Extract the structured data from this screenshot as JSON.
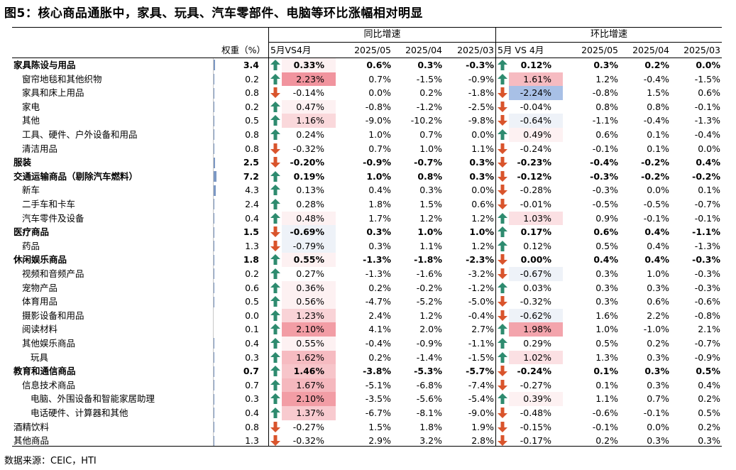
{
  "title": "图5：核心商品通胀中，家具、玩具、汽车零部件、电脑等环比涨幅相对明显",
  "source": "数据来源：CEIC，HTI",
  "colors": {
    "up": "#2e8b6f",
    "down": "#d9542c",
    "heat_pos": "#f0909a",
    "heat_neg": "#a8c0e6",
    "weight_bar": "#7c98c4"
  },
  "headers": {
    "group_yoy": "同比增速",
    "group_mom": "环比增速",
    "weight": "权重（%）",
    "yoy_diff": "5月VS4月",
    "yoy_may": "2025/05",
    "yoy_apr": "2025/04",
    "yoy_mar": "2025/03",
    "mom_diff": "5月 VS 4月",
    "mom_may": "2025/05",
    "mom_apr": "2025/04",
    "mom_mar": "2025/03"
  },
  "rows": [
    {
      "name": "家具陈设与用品",
      "indent": 0,
      "bold": true,
      "weight": "3.4",
      "yoy_diff": "0.33%",
      "yoy_diff_num": 0.33,
      "yoy_may": "0.6%",
      "yoy_apr": "0.3%",
      "yoy_mar": "-0.3%",
      "mom_diff": "0.12%",
      "mom_diff_num": 0.12,
      "mom_may": "0.3%",
      "mom_apr": "0.2%",
      "mom_mar": "0.0%"
    },
    {
      "name": "窗帘地毯和其他织物",
      "indent": 1,
      "bold": false,
      "weight": "0.2",
      "yoy_diff": "2.23%",
      "yoy_diff_num": 2.23,
      "yoy_may": "0.7%",
      "yoy_apr": "-1.5%",
      "yoy_mar": "-0.9%",
      "mom_diff": "1.61%",
      "mom_diff_num": 1.61,
      "mom_may": "1.2%",
      "mom_apr": "-0.4%",
      "mom_mar": "-1.5%"
    },
    {
      "name": "家具和床上用品",
      "indent": 1,
      "bold": false,
      "weight": "0.8",
      "yoy_diff": "-0.14%",
      "yoy_diff_num": -0.14,
      "yoy_may": "0.0%",
      "yoy_apr": "0.2%",
      "yoy_mar": "-1.8%",
      "mom_diff": "-2.24%",
      "mom_diff_num": -2.24,
      "mom_may": "-0.8%",
      "mom_apr": "1.5%",
      "mom_mar": "0.6%"
    },
    {
      "name": "家电",
      "indent": 1,
      "bold": false,
      "weight": "0.2",
      "yoy_diff": "0.47%",
      "yoy_diff_num": 0.47,
      "yoy_may": "-0.8%",
      "yoy_apr": "-1.2%",
      "yoy_mar": "-2.5%",
      "mom_diff": "-0.04%",
      "mom_diff_num": -0.04,
      "mom_may": "0.8%",
      "mom_apr": "0.8%",
      "mom_mar": "-0.1%"
    },
    {
      "name": "其他",
      "indent": 1,
      "bold": false,
      "weight": "0.5",
      "yoy_diff": "1.16%",
      "yoy_diff_num": 1.16,
      "yoy_may": "-9.0%",
      "yoy_apr": "-10.2%",
      "yoy_mar": "-9.8%",
      "mom_diff": "-0.64%",
      "mom_diff_num": -0.64,
      "mom_may": "-1.1%",
      "mom_apr": "-0.4%",
      "mom_mar": "-1.3%"
    },
    {
      "name": "工具、硬件、户外设备和用品",
      "indent": 1,
      "bold": false,
      "weight": "0.8",
      "yoy_diff": "0.24%",
      "yoy_diff_num": 0.24,
      "yoy_may": "1.0%",
      "yoy_apr": "0.7%",
      "yoy_mar": "0.0%",
      "mom_diff": "0.49%",
      "mom_diff_num": 0.49,
      "mom_may": "0.6%",
      "mom_apr": "0.1%",
      "mom_mar": "-0.4%"
    },
    {
      "name": "清洁用品",
      "indent": 1,
      "bold": false,
      "weight": "0.8",
      "yoy_diff": "-0.32%",
      "yoy_diff_num": -0.32,
      "yoy_may": "0.7%",
      "yoy_apr": "1.0%",
      "yoy_mar": "1.1%",
      "mom_diff": "-0.24%",
      "mom_diff_num": -0.24,
      "mom_may": "-0.1%",
      "mom_apr": "0.1%",
      "mom_mar": "0.0%"
    },
    {
      "name": "服装",
      "indent": 0,
      "bold": true,
      "weight": "2.5",
      "yoy_diff": "-0.20%",
      "yoy_diff_num": -0.2,
      "yoy_may": "-0.9%",
      "yoy_apr": "-0.7%",
      "yoy_mar": "0.3%",
      "mom_diff": "-0.23%",
      "mom_diff_num": -0.23,
      "mom_may": "-0.4%",
      "mom_apr": "-0.2%",
      "mom_mar": "0.4%"
    },
    {
      "name": "交通运输商品（剔除汽车燃料）",
      "indent": 0,
      "bold": true,
      "weight": "7.2",
      "yoy_diff": "0.19%",
      "yoy_diff_num": 0.19,
      "yoy_may": "1.0%",
      "yoy_apr": "0.8%",
      "yoy_mar": "0.3%",
      "mom_diff": "-0.12%",
      "mom_diff_num": -0.12,
      "mom_may": "-0.3%",
      "mom_apr": "-0.2%",
      "mom_mar": "-0.2%"
    },
    {
      "name": "新车",
      "indent": 1,
      "bold": false,
      "weight": "4.3",
      "yoy_diff": "0.13%",
      "yoy_diff_num": 0.13,
      "yoy_may": "0.4%",
      "yoy_apr": "0.3%",
      "yoy_mar": "0.0%",
      "mom_diff": "-0.28%",
      "mom_diff_num": -0.28,
      "mom_may": "-0.3%",
      "mom_apr": "0.0%",
      "mom_mar": "0.1%"
    },
    {
      "name": "二手车和卡车",
      "indent": 1,
      "bold": false,
      "weight": "2.4",
      "yoy_diff": "0.28%",
      "yoy_diff_num": 0.28,
      "yoy_may": "1.8%",
      "yoy_apr": "1.5%",
      "yoy_mar": "0.6%",
      "mom_diff": "-0.01%",
      "mom_diff_num": -0.01,
      "mom_may": "-0.5%",
      "mom_apr": "-0.5%",
      "mom_mar": "-0.7%"
    },
    {
      "name": "汽车零件及设备",
      "indent": 1,
      "bold": false,
      "weight": "0.4",
      "yoy_diff": "0.48%",
      "yoy_diff_num": 0.48,
      "yoy_may": "1.7%",
      "yoy_apr": "1.2%",
      "yoy_mar": "1.2%",
      "mom_diff": "1.03%",
      "mom_diff_num": 1.03,
      "mom_may": "0.9%",
      "mom_apr": "-0.1%",
      "mom_mar": "-0.1%"
    },
    {
      "name": "医疗商品",
      "indent": 0,
      "bold": true,
      "weight": "1.5",
      "yoy_diff": "-0.69%",
      "yoy_diff_num": -0.69,
      "yoy_may": "0.3%",
      "yoy_apr": "1.0%",
      "yoy_mar": "1.0%",
      "mom_diff": "0.17%",
      "mom_diff_num": 0.17,
      "mom_may": "0.6%",
      "mom_apr": "0.4%",
      "mom_mar": "-1.1%"
    },
    {
      "name": "药品",
      "indent": 1,
      "bold": false,
      "weight": "1.3",
      "yoy_diff": "-0.79%",
      "yoy_diff_num": -0.79,
      "yoy_may": "0.3%",
      "yoy_apr": "1.1%",
      "yoy_mar": "1.2%",
      "mom_diff": "0.12%",
      "mom_diff_num": 0.12,
      "mom_may": "0.5%",
      "mom_apr": "0.4%",
      "mom_mar": "-1.3%"
    },
    {
      "name": "休闲娱乐商品",
      "indent": 0,
      "bold": true,
      "weight": "1.8",
      "yoy_diff": "0.55%",
      "yoy_diff_num": 0.55,
      "yoy_may": "-1.3%",
      "yoy_apr": "-1.8%",
      "yoy_mar": "-2.3%",
      "mom_diff": "0.00%",
      "mom_diff_num": 0.0,
      "mom_dir": "down",
      "mom_may": "0.4%",
      "mom_apr": "0.4%",
      "mom_mar": "-0.3%"
    },
    {
      "name": "视频和音频产品",
      "indent": 1,
      "bold": false,
      "weight": "0.2",
      "yoy_diff": "0.27%",
      "yoy_diff_num": 0.27,
      "yoy_may": "-1.3%",
      "yoy_apr": "-1.6%",
      "yoy_mar": "-3.2%",
      "mom_diff": "-0.67%",
      "mom_diff_num": -0.67,
      "mom_may": "0.3%",
      "mom_apr": "1.0%",
      "mom_mar": "-0.3%"
    },
    {
      "name": "宠物产品",
      "indent": 1,
      "bold": false,
      "weight": "0.6",
      "yoy_diff": "0.36%",
      "yoy_diff_num": 0.36,
      "yoy_may": "0.2%",
      "yoy_apr": "-0.2%",
      "yoy_mar": "-1.2%",
      "mom_diff": "0.03%",
      "mom_diff_num": 0.03,
      "mom_may": "0.3%",
      "mom_apr": "0.3%",
      "mom_mar": "-0.3%"
    },
    {
      "name": "体育用品",
      "indent": 1,
      "bold": false,
      "weight": "0.5",
      "yoy_diff": "0.56%",
      "yoy_diff_num": 0.56,
      "yoy_may": "-4.7%",
      "yoy_apr": "-5.2%",
      "yoy_mar": "-5.0%",
      "mom_diff": "-0.32%",
      "mom_diff_num": -0.32,
      "mom_may": "0.3%",
      "mom_apr": "0.6%",
      "mom_mar": "-0.6%"
    },
    {
      "name": "摄影设备和用品",
      "indent": 1,
      "bold": false,
      "weight": "0.0",
      "yoy_diff": "1.23%",
      "yoy_diff_num": 1.23,
      "yoy_may": "2.4%",
      "yoy_apr": "1.2%",
      "yoy_mar": "-0.4%",
      "mom_diff": "-0.62%",
      "mom_diff_num": -0.62,
      "mom_may": "1.6%",
      "mom_apr": "2.2%",
      "mom_mar": "-0.8%"
    },
    {
      "name": "阅读材料",
      "indent": 1,
      "bold": false,
      "weight": "0.1",
      "yoy_diff": "2.10%",
      "yoy_diff_num": 2.1,
      "yoy_may": "4.1%",
      "yoy_apr": "2.0%",
      "yoy_mar": "2.7%",
      "mom_diff": "1.98%",
      "mom_diff_num": 1.98,
      "mom_may": "1.0%",
      "mom_apr": "-1.0%",
      "mom_mar": "2.1%"
    },
    {
      "name": "其他娱乐商品",
      "indent": 1,
      "bold": false,
      "weight": "0.4",
      "yoy_diff": "0.55%",
      "yoy_diff_num": 0.55,
      "yoy_may": "-0.4%",
      "yoy_apr": "-0.9%",
      "yoy_mar": "-1.1%",
      "mom_diff": "0.29%",
      "mom_diff_num": 0.29,
      "mom_may": "0.5%",
      "mom_apr": "0.2%",
      "mom_mar": "-0.7%"
    },
    {
      "name": "玩具",
      "indent": 2,
      "bold": false,
      "weight": "0.3",
      "yoy_diff": "1.62%",
      "yoy_diff_num": 1.62,
      "yoy_may": "0.2%",
      "yoy_apr": "-1.4%",
      "yoy_mar": "-1.5%",
      "mom_diff": "1.02%",
      "mom_diff_num": 1.02,
      "mom_may": "1.3%",
      "mom_apr": "0.3%",
      "mom_mar": "-0.9%"
    },
    {
      "name": "教育和通信商品",
      "indent": 0,
      "bold": true,
      "weight": "0.7",
      "yoy_diff": "1.46%",
      "yoy_diff_num": 1.46,
      "yoy_may": "-3.8%",
      "yoy_apr": "-5.3%",
      "yoy_mar": "-5.7%",
      "mom_diff": "-0.24%",
      "mom_diff_num": -0.24,
      "mom_may": "0.1%",
      "mom_apr": "0.3%",
      "mom_mar": "0.5%"
    },
    {
      "name": "信息技术商品",
      "indent": 1,
      "bold": false,
      "weight": "0.7",
      "yoy_diff": "1.67%",
      "yoy_diff_num": 1.67,
      "yoy_may": "-5.1%",
      "yoy_apr": "-6.8%",
      "yoy_mar": "-7.4%",
      "mom_diff": "-0.27%",
      "mom_diff_num": -0.27,
      "mom_may": "0.1%",
      "mom_apr": "0.3%",
      "mom_mar": "0.4%"
    },
    {
      "name": "电脑、外围设备和智能家居助理",
      "indent": 2,
      "bold": false,
      "weight": "0.3",
      "yoy_diff": "2.10%",
      "yoy_diff_num": 2.1,
      "yoy_may": "-3.5%",
      "yoy_apr": "-5.6%",
      "yoy_mar": "-5.4%",
      "mom_diff": "0.39%",
      "mom_diff_num": 0.39,
      "mom_may": "1.1%",
      "mom_apr": "0.7%",
      "mom_mar": "0.2%"
    },
    {
      "name": "电话硬件、计算器和其他",
      "indent": 2,
      "bold": false,
      "weight": "0.4",
      "yoy_diff": "1.37%",
      "yoy_diff_num": 1.37,
      "yoy_may": "-6.7%",
      "yoy_apr": "-8.1%",
      "yoy_mar": "-9.0%",
      "mom_diff": "-0.48%",
      "mom_diff_num": -0.48,
      "mom_may": "-0.6%",
      "mom_apr": "-0.1%",
      "mom_mar": "0.5%"
    },
    {
      "name": "酒精饮料",
      "indent": 0,
      "bold": false,
      "weight": "0.8",
      "yoy_diff": "-0.27%",
      "yoy_diff_num": -0.27,
      "yoy_may": "1.5%",
      "yoy_apr": "1.8%",
      "yoy_mar": "1.9%",
      "mom_diff": "-0.15%",
      "mom_diff_num": -0.15,
      "mom_may": "-0.1%",
      "mom_apr": "0.0%",
      "mom_mar": "0.2%"
    },
    {
      "name": "其他商品",
      "indent": 0,
      "bold": false,
      "weight": "1.3",
      "yoy_diff": "-0.32%",
      "yoy_diff_num": -0.32,
      "yoy_may": "2.9%",
      "yoy_apr": "3.2%",
      "yoy_mar": "2.8%",
      "mom_diff": "-0.17%",
      "mom_diff_num": -0.17,
      "mom_may": "0.2%",
      "mom_apr": "0.3%",
      "mom_mar": "0.3%"
    }
  ]
}
